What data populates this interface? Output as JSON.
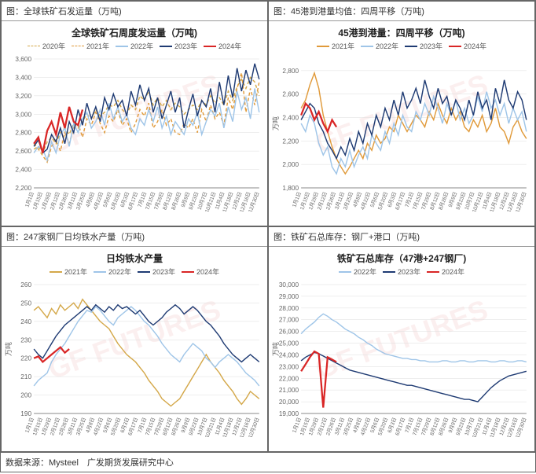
{
  "source": "数据来源：Mysteel　广发期货发展研究中心",
  "charts": [
    {
      "header": "图：全球铁矿石发运量（万吨)",
      "title": "全球铁矿石周度发运量（万吨)",
      "ylim": [
        2200,
        3600
      ],
      "ytick_step": 200,
      "ylabel": "",
      "x_count": 52,
      "x_labels": [
        "1月1日",
        "1月15日",
        "1月29日",
        "2月12日",
        "2月26日",
        "3月11日",
        "3月25日",
        "4月8日",
        "4月22日",
        "5月6日",
        "5月20日",
        "6月3日",
        "6月17日",
        "7月1日",
        "7月15日",
        "7月29日",
        "8月12日",
        "8月26日",
        "9月9日",
        "9月23日",
        "10月7日",
        "10月21日",
        "11月4日",
        "11月18日",
        "12月2日",
        "12月16日",
        "12月30日"
      ],
      "legend": [
        {
          "label": "2020年",
          "color": "#d4a84a",
          "dashed": true
        },
        {
          "label": "2021年",
          "color": "#e09a3a",
          "dashed": true
        },
        {
          "label": "2022年",
          "color": "#9fc5e8",
          "dashed": false
        },
        {
          "label": "2023年",
          "color": "#1f3b73",
          "dashed": false
        },
        {
          "label": "2024年",
          "color": "#d92626",
          "dashed": false,
          "bold": true
        }
      ],
      "series": [
        {
          "color": "#d4a84a",
          "dashed": true,
          "data": [
            2620,
            2650,
            2580,
            2700,
            2750,
            2680,
            2800,
            2850,
            2780,
            2900,
            2850,
            2920,
            3000,
            2950,
            3050,
            2980,
            3020,
            3100,
            3080,
            3150,
            3050,
            3000,
            3100,
            3050,
            3200,
            3150,
            3250,
            3100,
            3180,
            3080,
            3150,
            3050,
            3120,
            3080,
            3000,
            3050,
            3100,
            3050,
            3150,
            3100,
            3200,
            3120,
            3180,
            3100,
            3250,
            3150,
            3300,
            3380,
            3280,
            3400,
            3350,
            3200
          ]
        },
        {
          "color": "#e09a3a",
          "dashed": true,
          "data": [
            2680,
            2620,
            2550,
            2480,
            2650,
            2720,
            2600,
            2800,
            2680,
            2850,
            2900,
            2750,
            2950,
            2880,
            3020,
            2900,
            2800,
            2980,
            2920,
            3050,
            2880,
            2950,
            2800,
            2900,
            3050,
            2980,
            3120,
            2850,
            2920,
            3050,
            2880,
            2950,
            2800,
            2780,
            2900,
            2850,
            2950,
            2800,
            3050,
            2920,
            3100,
            2950,
            3020,
            2880,
            3180,
            3050,
            3280,
            3450,
            3020,
            3280,
            3100,
            3350
          ]
        },
        {
          "color": "#9fc5e8",
          "dashed": false,
          "data": [
            2580,
            2650,
            2620,
            2500,
            2700,
            2580,
            2780,
            2850,
            2650,
            2900,
            2800,
            2950,
            3020,
            2850,
            2920,
            3050,
            2880,
            3120,
            2950,
            3080,
            2920,
            3000,
            2850,
            2780,
            2950,
            2880,
            3050,
            2920,
            3080,
            2850,
            2980,
            2780,
            2920,
            2850,
            2780,
            2950,
            2880,
            3020,
            2780,
            2920,
            3050,
            2980,
            3120,
            2850,
            3080,
            2920,
            3250,
            3050,
            3180,
            2950,
            3280,
            3020
          ]
        },
        {
          "color": "#1f3b73",
          "dashed": false,
          "data": [
            2650,
            2720,
            2580,
            2620,
            2780,
            2700,
            2850,
            2680,
            2920,
            2800,
            3050,
            2880,
            3120,
            2950,
            3080,
            2920,
            3180,
            3050,
            3220,
            3080,
            3150,
            2980,
            3250,
            3100,
            3320,
            3150,
            3280,
            3020,
            3180,
            2950,
            3100,
            3250,
            3020,
            3180,
            2850,
            3050,
            3220,
            2980,
            3150,
            3080,
            3280,
            3020,
            3350,
            3100,
            3420,
            3180,
            3500,
            3250,
            3480,
            3320,
            3550,
            3380
          ]
        },
        {
          "color": "#d92626",
          "dashed": false,
          "bold": true,
          "data": [
            2680,
            2750,
            2580,
            2820,
            2920,
            2780,
            3020,
            2850,
            3080,
            2920,
            2880,
            3050
          ]
        }
      ]
    },
    {
      "header": "图：45港到港量均值：四周平移（万吨)",
      "title": "45港到港量：四周平移（万吨)",
      "ylim": [
        1800,
        2900
      ],
      "ytick_step": 200,
      "ylabel": "万吨",
      "x_count": 52,
      "x_labels": [
        "1月1日",
        "1月15日",
        "1月29日",
        "2月12日",
        "2月26日",
        "3月11日",
        "3月25日",
        "4月8日",
        "4月22日",
        "5月6日",
        "5月20日",
        "6月3日",
        "6月17日",
        "7月1日",
        "7月15日",
        "7月29日",
        "8月12日",
        "8月26日",
        "9月9日",
        "9月23日",
        "10月7日",
        "10月21日",
        "11月4日",
        "11月18日",
        "12月2日",
        "12月16日",
        "12月30日"
      ],
      "legend": [
        {
          "label": "2021年",
          "color": "#e09a3a",
          "dashed": false
        },
        {
          "label": "2022年",
          "color": "#9fc5e8",
          "dashed": false
        },
        {
          "label": "2023年",
          "color": "#1f3b73",
          "dashed": false
        },
        {
          "label": "2024年",
          "color": "#d92626",
          "dashed": false,
          "bold": true
        }
      ],
      "series": [
        {
          "color": "#e09a3a",
          "dashed": false,
          "data": [
            2480,
            2550,
            2680,
            2780,
            2650,
            2420,
            2280,
            2150,
            2050,
            1980,
            1920,
            1980,
            2050,
            2120,
            2050,
            2180,
            2120,
            2250,
            2180,
            2220,
            2320,
            2280,
            2420,
            2350,
            2280,
            2350,
            2420,
            2380,
            2320,
            2450,
            2380,
            2520,
            2420,
            2350,
            2480,
            2380,
            2450,
            2320,
            2280,
            2380,
            2320,
            2420,
            2280,
            2350,
            2480,
            2320,
            2280,
            2180,
            2320,
            2380,
            2280,
            2220
          ]
        },
        {
          "color": "#9fc5e8",
          "dashed": false,
          "data": [
            2350,
            2280,
            2420,
            2350,
            2180,
            2080,
            2150,
            1980,
            1920,
            2050,
            1980,
            2120,
            1980,
            2080,
            2150,
            2050,
            2250,
            2180,
            2120,
            2280,
            2180,
            2350,
            2250,
            2420,
            2320,
            2280,
            2450,
            2380,
            2520,
            2420,
            2580,
            2480,
            2350,
            2520,
            2420,
            2550,
            2380,
            2480,
            2350,
            2420,
            2580,
            2450,
            2620,
            2480,
            2550,
            2420,
            2520,
            2350,
            2480,
            2380,
            2450,
            2280
          ]
        },
        {
          "color": "#1f3b73",
          "dashed": false,
          "data": [
            2380,
            2450,
            2520,
            2480,
            2350,
            2280,
            2180,
            2120,
            2050,
            2150,
            2080,
            2220,
            2120,
            2280,
            2180,
            2350,
            2250,
            2420,
            2320,
            2480,
            2380,
            2550,
            2420,
            2620,
            2480,
            2550,
            2650,
            2520,
            2720,
            2580,
            2480,
            2650,
            2520,
            2580,
            2420,
            2550,
            2480,
            2380,
            2550,
            2420,
            2620,
            2480,
            2550,
            2380,
            2650,
            2520,
            2720,
            2550,
            2480,
            2620,
            2550,
            2380
          ]
        },
        {
          "color": "#d92626",
          "dashed": false,
          "bold": true,
          "data": [
            2420,
            2520,
            2480,
            2380,
            2450,
            2350,
            2280,
            2380,
            2320
          ]
        }
      ]
    },
    {
      "header": "图：247家钢厂日均铁水产量（万吨)",
      "title": "日均铁水产量",
      "ylim": [
        190,
        260
      ],
      "ytick_step": 10,
      "ylabel": "万吨",
      "x_count": 52,
      "x_labels": [
        "1月1日",
        "1月15日",
        "1月29日",
        "2月12日",
        "2月26日",
        "3月11日",
        "3月25日",
        "4月8日",
        "4月22日",
        "5月6日",
        "5月20日",
        "6月3日",
        "6月17日",
        "7月1日",
        "7月15日",
        "7月29日",
        "8月12日",
        "8月26日",
        "9月9日",
        "9月23日",
        "10月7日",
        "10月21日",
        "11月4日",
        "11月18日",
        "12月2日",
        "12月16日",
        "12月30日"
      ],
      "legend": [
        {
          "label": "2021年",
          "color": "#d4a84a",
          "dashed": false
        },
        {
          "label": "2022年",
          "color": "#9fc5e8",
          "dashed": false
        },
        {
          "label": "2023年",
          "color": "#1f3b73",
          "dashed": false
        },
        {
          "label": "2024年",
          "color": "#d92626",
          "dashed": false,
          "bold": true
        }
      ],
      "series": [
        {
          "color": "#d4a84a",
          "dashed": false,
          "data": [
            246,
            248,
            245,
            242,
            247,
            244,
            249,
            246,
            248,
            250,
            247,
            252,
            249,
            246,
            243,
            240,
            238,
            236,
            232,
            228,
            225,
            222,
            220,
            218,
            215,
            212,
            208,
            205,
            202,
            198,
            196,
            194,
            196,
            198,
            202,
            206,
            210,
            214,
            218,
            222,
            218,
            215,
            212,
            208,
            205,
            202,
            198,
            195,
            198,
            202,
            200,
            198
          ]
        },
        {
          "color": "#9fc5e8",
          "dashed": false,
          "data": [
            205,
            208,
            210,
            212,
            218,
            222,
            225,
            228,
            232,
            236,
            240,
            243,
            246,
            245,
            248,
            246,
            243,
            240,
            238,
            242,
            244,
            246,
            248,
            246,
            243,
            240,
            238,
            235,
            232,
            228,
            225,
            222,
            220,
            218,
            222,
            225,
            228,
            226,
            224,
            220,
            218,
            215,
            218,
            220,
            222,
            220,
            218,
            215,
            212,
            210,
            208,
            205
          ]
        },
        {
          "color": "#1f3b73",
          "dashed": false,
          "data": [
            225,
            222,
            220,
            224,
            228,
            232,
            235,
            238,
            240,
            242,
            244,
            246,
            248,
            246,
            249,
            247,
            245,
            248,
            246,
            249,
            247,
            248,
            246,
            244,
            246,
            243,
            240,
            238,
            240,
            242,
            245,
            247,
            249,
            247,
            244,
            246,
            248,
            246,
            243,
            240,
            238,
            235,
            232,
            228,
            225,
            222,
            220,
            218,
            220,
            222,
            220,
            218
          ]
        },
        {
          "color": "#d92626",
          "dashed": false,
          "bold": true,
          "data": [
            220,
            221,
            218,
            220,
            222,
            224,
            226,
            223,
            225
          ]
        }
      ]
    },
    {
      "header": "图：铁矿石总库存：钢厂+港口（万吨)",
      "title": "铁矿石总库存（47港+247钢厂)",
      "ylim": [
        19000,
        30000
      ],
      "ytick_step": 1000,
      "ylabel": "万吨",
      "x_count": 52,
      "x_labels": [
        "1月1日",
        "1月15日",
        "1月29日",
        "2月12日",
        "2月26日",
        "3月11日",
        "3月25日",
        "4月8日",
        "4月22日",
        "5月6日",
        "5月20日",
        "6月3日",
        "6月17日",
        "7月1日",
        "7月15日",
        "7月29日",
        "8月12日",
        "8月26日",
        "9月9日",
        "9月23日",
        "10月7日",
        "10月21日",
        "11月4日",
        "11月18日",
        "12月2日",
        "12月16日",
        "12月30日"
      ],
      "legend": [
        {
          "label": "2022年",
          "color": "#9fc5e8",
          "dashed": false
        },
        {
          "label": "2023年",
          "color": "#1f3b73",
          "dashed": false
        },
        {
          "label": "2024年",
          "color": "#d92626",
          "dashed": false,
          "bold": true
        }
      ],
      "series": [
        {
          "color": "#9fc5e8",
          "dashed": false,
          "data": [
            25800,
            26200,
            26500,
            26800,
            27200,
            27500,
            27300,
            27000,
            26800,
            26500,
            26200,
            26000,
            25800,
            25500,
            25300,
            25000,
            24800,
            24500,
            24300,
            24100,
            24000,
            23900,
            23800,
            23700,
            23700,
            23600,
            23600,
            23500,
            23500,
            23400,
            23400,
            23400,
            23500,
            23500,
            23400,
            23400,
            23500,
            23500,
            23400,
            23400,
            23500,
            23500,
            23500,
            23400,
            23400,
            23500,
            23500,
            23400,
            23400,
            23500,
            23500,
            23400
          ]
        },
        {
          "color": "#1f3b73",
          "dashed": false,
          "data": [
            23500,
            23800,
            24000,
            24200,
            24100,
            23900,
            23700,
            23500,
            23300,
            23100,
            22900,
            22700,
            22600,
            22500,
            22400,
            22300,
            22200,
            22100,
            22000,
            21900,
            21800,
            21700,
            21600,
            21500,
            21400,
            21400,
            21300,
            21200,
            21100,
            21000,
            20900,
            20800,
            20700,
            20600,
            20500,
            20400,
            20300,
            20200,
            20200,
            20100,
            20000,
            20400,
            20800,
            21200,
            21500,
            21800,
            22000,
            22200,
            22300,
            22400,
            22500,
            22600
          ]
        },
        {
          "color": "#d92626",
          "dashed": false,
          "bold": true,
          "data": [
            22600,
            23200,
            23800,
            24300,
            24100,
            19500,
            23800,
            23600,
            23400
          ]
        }
      ]
    }
  ]
}
